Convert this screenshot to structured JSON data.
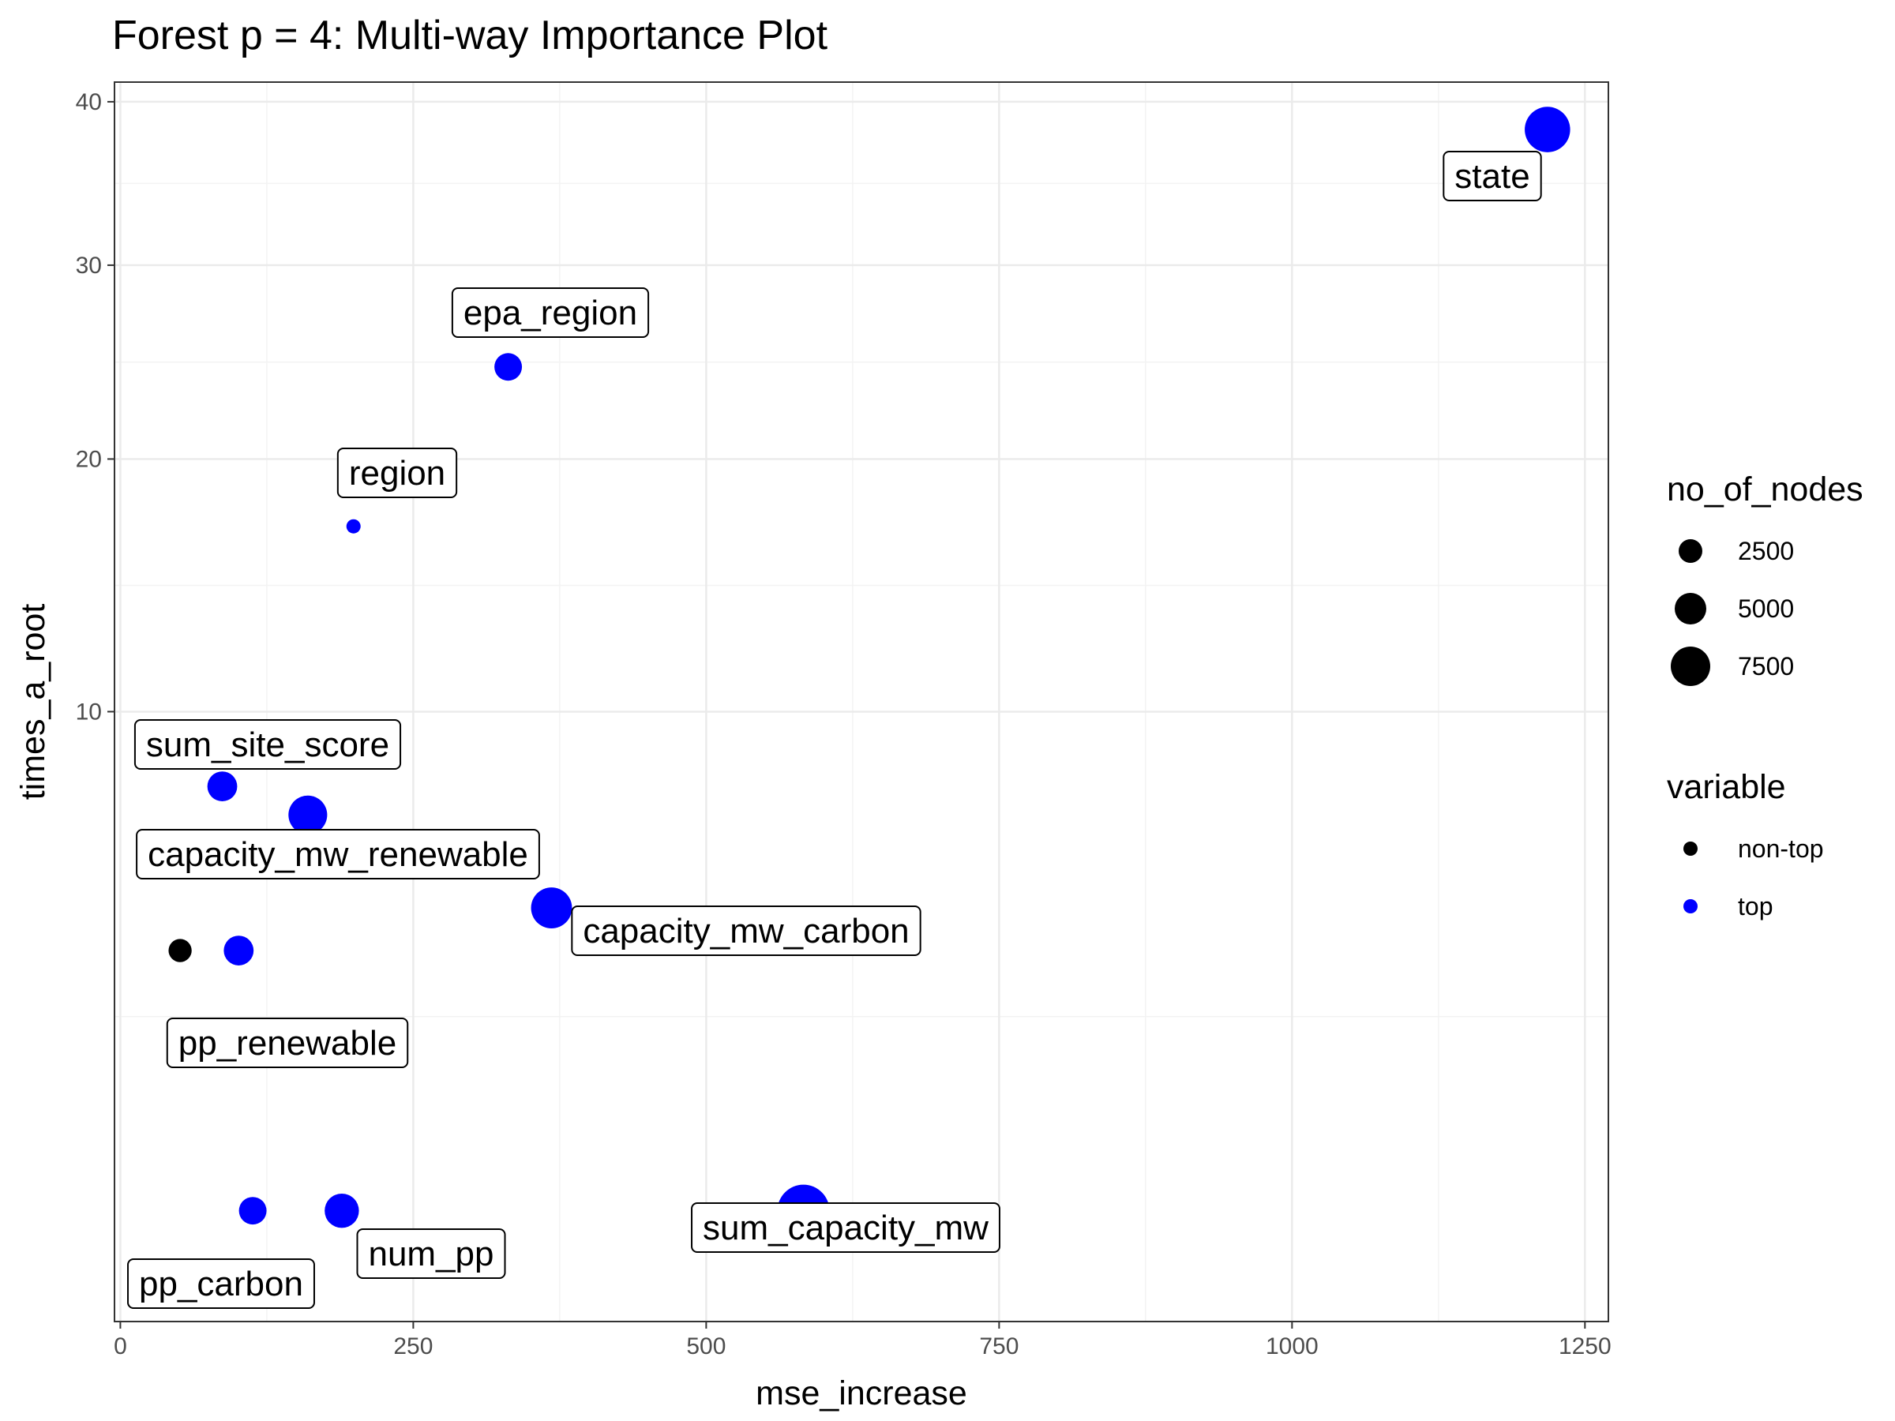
{
  "chart_data": {
    "type": "scatter",
    "title": "Forest p = 4: Multi-way Importance Plot",
    "xlabel": "mse_increase",
    "ylabel": "times_a_root",
    "x_scale": "linear",
    "y_scale": "sqrt",
    "xlim": [
      -5,
      1270
    ],
    "ylim": [
      0,
      41.3
    ],
    "x_ticks": [
      0,
      250,
      500,
      750,
      1000,
      1250
    ],
    "x_tick_labels": [
      "0",
      "250",
      "500",
      "750",
      "1000",
      "1250"
    ],
    "y_ticks": [
      10,
      20,
      30,
      40
    ],
    "y_tick_labels": [
      "10",
      "20",
      "30",
      "40"
    ],
    "grid": true,
    "points": [
      {
        "label": "state",
        "x": 1218,
        "y": 38.2,
        "no_of_nodes": 7500,
        "variable": "top",
        "show_label": true
      },
      {
        "label": "epa_region",
        "x": 331,
        "y": 24.5,
        "no_of_nodes": 3500,
        "variable": "top",
        "show_label": true
      },
      {
        "label": "region",
        "x": 199,
        "y": 17,
        "no_of_nodes": 500,
        "variable": "top",
        "show_label": true
      },
      {
        "label": "sum_site_score",
        "x": 87,
        "y": 7.7,
        "no_of_nodes": 4000,
        "variable": "top",
        "show_label": true
      },
      {
        "label": "capacity_mw_renewable",
        "x": 160,
        "y": 6.9,
        "no_of_nodes": 6000,
        "variable": "top",
        "show_label": true
      },
      {
        "label": "capacity_mw_carbon",
        "x": 368,
        "y": 4.6,
        "no_of_nodes": 6500,
        "variable": "top",
        "show_label": true
      },
      {
        "label": "pp_renewable",
        "x": 101,
        "y": 3.7,
        "no_of_nodes": 4000,
        "variable": "top",
        "show_label": true
      },
      {
        "label": "",
        "x": 51,
        "y": 3.7,
        "no_of_nodes": 2500,
        "variable": "non-top",
        "show_label": false
      },
      {
        "label": "sum_capacity_mw",
        "x": 583,
        "y": 0.33,
        "no_of_nodes": 9000,
        "variable": "top",
        "show_label": true
      },
      {
        "label": "num_pp",
        "x": 189,
        "y": 0.33,
        "no_of_nodes": 5000,
        "variable": "top",
        "show_label": true
      },
      {
        "label": "pp_carbon",
        "x": 113,
        "y": 0.33,
        "no_of_nodes": 3500,
        "variable": "top",
        "show_label": true
      }
    ],
    "legend": {
      "size_title": "no_of_nodes",
      "size_entries": [
        {
          "label": "2500",
          "value": 2500
        },
        {
          "label": "5000",
          "value": 5000
        },
        {
          "label": "7500",
          "value": 7500
        }
      ],
      "color_title": "variable",
      "color_entries": [
        {
          "label": "non-top",
          "color": "#000000"
        },
        {
          "label": "top",
          "color": "#0000ff"
        }
      ]
    },
    "colors": {
      "top": "#0000ff",
      "non-top": "#000000",
      "grid_major": "#ebebeb",
      "grid_minor": "#f3f3f3",
      "panel_border": "#333333"
    }
  }
}
